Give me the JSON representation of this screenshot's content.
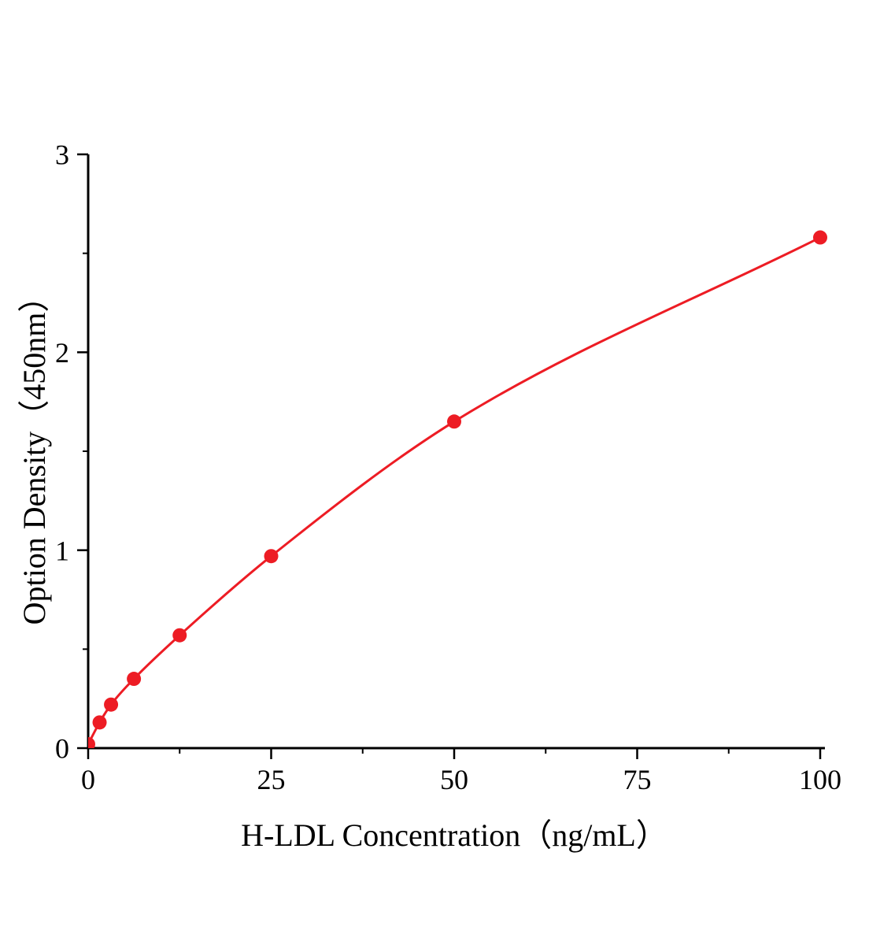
{
  "figure": {
    "background": "#ffffff",
    "text_color": "#000000"
  },
  "chart_data": {
    "type": "line",
    "markers": true,
    "title": "",
    "xlabel": "H-LDL Concentration（ng/mL）",
    "ylabel": "Option Density（450nm）",
    "x": [
      0,
      1.5625,
      3.125,
      6.25,
      12.5,
      25,
      50,
      100
    ],
    "y": [
      0.02,
      0.13,
      0.22,
      0.35,
      0.57,
      0.97,
      1.65,
      2.58
    ],
    "xlim": [
      0,
      100
    ],
    "ylim": [
      0,
      3
    ],
    "x_ticks": [
      0,
      25,
      50,
      75,
      100
    ],
    "y_ticks": [
      0,
      1,
      2,
      3
    ],
    "x_minor_ticks": [
      12.5,
      37.5,
      62.5,
      87.5
    ],
    "y_minor_ticks": [
      0.5,
      1.5,
      2.5
    ],
    "line_color": "#ed1c24",
    "marker_color": "#ed1c24",
    "axis_color": "#000000",
    "grid": false,
    "legend": "none"
  }
}
